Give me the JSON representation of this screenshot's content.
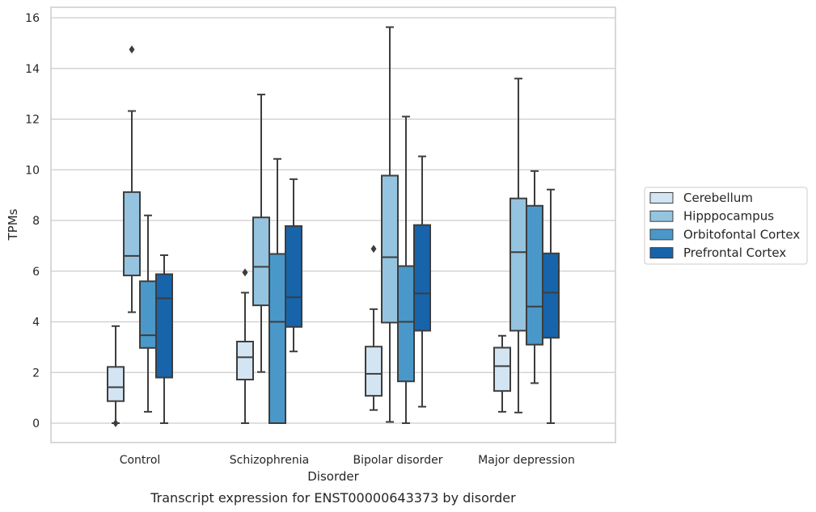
{
  "chart_data": {
    "type": "boxplot",
    "xlabel": "Disorder",
    "ylabel": "TPMs",
    "caption": "Transcript expression for ENST00000643373 by disorder",
    "ylim": [
      -0.75,
      16.4
    ],
    "yticks": [
      0,
      2,
      4,
      6,
      8,
      10,
      12,
      14,
      16
    ],
    "grid": true,
    "legend_position": "right",
    "categories": [
      "Control",
      "Schizophrenia",
      "Bipolar disorder",
      "Major depression"
    ],
    "series": [
      {
        "name": "Cerebellum",
        "color": "#d3e4f3",
        "boxes": [
          {
            "whislo": 0.0,
            "q1": 0.87,
            "median": 1.42,
            "q3": 2.22,
            "whishi": 3.83,
            "fliers": [
              0.0
            ]
          },
          {
            "whislo": 0.0,
            "q1": 1.72,
            "median": 2.6,
            "q3": 3.22,
            "whishi": 5.15,
            "fliers": [
              5.95
            ]
          },
          {
            "whislo": 0.52,
            "q1": 1.08,
            "median": 1.95,
            "q3": 3.02,
            "whishi": 4.5,
            "fliers": [
              6.88
            ]
          },
          {
            "whislo": 0.45,
            "q1": 1.27,
            "median": 2.25,
            "q3": 2.98,
            "whishi": 3.45,
            "fliers": []
          }
        ]
      },
      {
        "name": "Hipppocampus",
        "color": "#94c4df",
        "boxes": [
          {
            "whislo": 4.38,
            "q1": 5.83,
            "median": 6.6,
            "q3": 9.12,
            "whishi": 12.32,
            "fliers": [
              14.75
            ]
          },
          {
            "whislo": 2.02,
            "q1": 4.65,
            "median": 6.17,
            "q3": 8.12,
            "whishi": 12.97,
            "fliers": []
          },
          {
            "whislo": 0.05,
            "q1": 3.97,
            "median": 6.55,
            "q3": 9.77,
            "whishi": 15.63,
            "fliers": []
          },
          {
            "whislo": 0.42,
            "q1": 3.65,
            "median": 6.75,
            "q3": 8.87,
            "whishi": 13.6,
            "fliers": []
          }
        ]
      },
      {
        "name": "Orbitofontal Cortex",
        "color": "#4a98c9",
        "boxes": [
          {
            "whislo": 0.45,
            "q1": 2.97,
            "median": 3.47,
            "q3": 5.6,
            "whishi": 8.2,
            "fliers": []
          },
          {
            "whislo": 0.0,
            "q1": 0.0,
            "median": 4.0,
            "q3": 6.68,
            "whishi": 10.43,
            "fliers": []
          },
          {
            "whislo": 0.0,
            "q1": 1.65,
            "median": 4.0,
            "q3": 6.2,
            "whishi": 12.1,
            "fliers": []
          },
          {
            "whislo": 1.58,
            "q1": 3.1,
            "median": 4.6,
            "q3": 8.58,
            "whishi": 9.95,
            "fliers": []
          }
        ]
      },
      {
        "name": "Prefrontal Cortex",
        "color": "#1764ab",
        "boxes": [
          {
            "whislo": 0.0,
            "q1": 1.8,
            "median": 4.93,
            "q3": 5.88,
            "whishi": 6.63,
            "fliers": []
          },
          {
            "whislo": 2.83,
            "q1": 3.8,
            "median": 4.97,
            "q3": 7.78,
            "whishi": 9.63,
            "fliers": []
          },
          {
            "whislo": 0.65,
            "q1": 3.65,
            "median": 5.12,
            "q3": 7.82,
            "whishi": 10.53,
            "fliers": []
          },
          {
            "whislo": 0.0,
            "q1": 3.37,
            "median": 5.15,
            "q3": 6.7,
            "whishi": 9.22,
            "fliers": []
          }
        ]
      }
    ]
  }
}
